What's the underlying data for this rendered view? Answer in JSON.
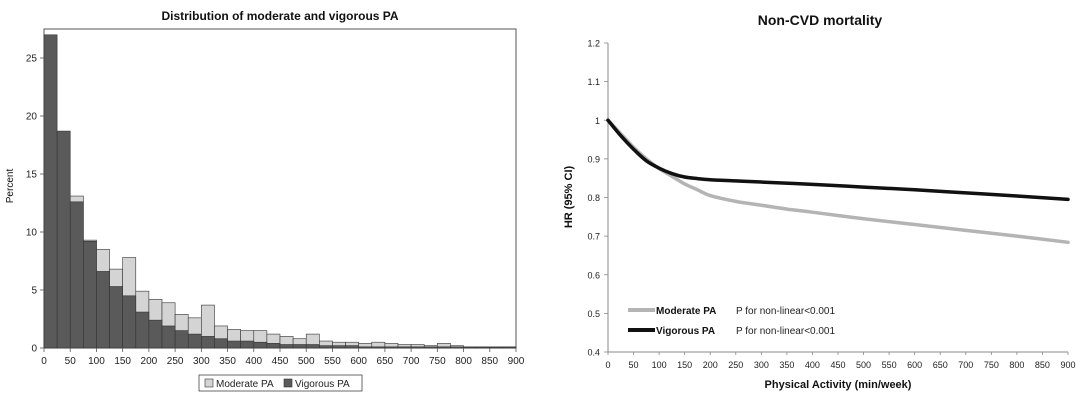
{
  "chart_data": [
    {
      "type": "bar",
      "title": "Distribution of moderate and vigorous PA",
      "xlabel": "",
      "ylabel": "Percent",
      "xlim": [
        0,
        900
      ],
      "ylim": [
        0,
        27.5
      ],
      "bin_width": 25,
      "x_ticks": [
        0,
        50,
        100,
        150,
        200,
        250,
        300,
        350,
        400,
        450,
        500,
        550,
        600,
        650,
        700,
        750,
        800,
        850,
        900
      ],
      "y_ticks": [
        0,
        5,
        10,
        15,
        20,
        25
      ],
      "grid": false,
      "legend_position": "bottom",
      "series": [
        {
          "name": "Moderate PA",
          "color": "#d4d4d4",
          "values": [
            9.2,
            9.5,
            13.1,
            9.3,
            8.5,
            6.8,
            7.8,
            4.9,
            4.2,
            3.9,
            2.9,
            2.6,
            3.7,
            1.9,
            1.6,
            1.5,
            1.5,
            1.2,
            1.0,
            0.8,
            1.2,
            0.6,
            0.5,
            0.5,
            0.4,
            0.5,
            0.4,
            0.3,
            0.3,
            0.2,
            0.4,
            0.2,
            0.1,
            0.1,
            0.1,
            0.1
          ]
        },
        {
          "name": "Vigorous PA",
          "color": "#5a5a5a",
          "values": [
            27.0,
            18.7,
            12.6,
            9.2,
            6.6,
            5.3,
            4.5,
            3.1,
            2.4,
            1.9,
            1.5,
            1.2,
            1.0,
            0.8,
            0.6,
            0.6,
            0.5,
            0.4,
            0.3,
            0.3,
            0.3,
            0.2,
            0.2,
            0.2,
            0.1,
            0.1,
            0.1,
            0.1,
            0.1,
            0.1,
            0.1,
            0.1,
            0.05,
            0.05,
            0.05,
            0.05
          ]
        }
      ]
    },
    {
      "type": "line",
      "title": "Non-CVD mortality",
      "xlabel": "Physical Activity (min/week)",
      "ylabel": "HR (95% CI)",
      "xlim": [
        0,
        900
      ],
      "ylim": [
        0.4,
        1.2
      ],
      "x_ticks": [
        0,
        50,
        100,
        150,
        200,
        250,
        300,
        350,
        400,
        450,
        500,
        550,
        600,
        650,
        700,
        750,
        800,
        850,
        900
      ],
      "y_ticks": [
        0.4,
        0.5,
        0.6,
        0.7,
        0.8,
        0.9,
        1,
        1.1,
        1.2
      ],
      "grid": false,
      "legend_position": "bottom-left",
      "series": [
        {
          "name": "Moderate PA",
          "annotation": "P for non-linear<0.001",
          "color": "#b4b4b4",
          "x": [
            0,
            25,
            50,
            75,
            100,
            125,
            150,
            175,
            200,
            250,
            300,
            350,
            400,
            500,
            600,
            700,
            800,
            900
          ],
          "y": [
            1.0,
            0.965,
            0.93,
            0.9,
            0.875,
            0.855,
            0.835,
            0.82,
            0.805,
            0.79,
            0.78,
            0.77,
            0.762,
            0.745,
            0.73,
            0.715,
            0.7,
            0.684
          ]
        },
        {
          "name": "Vigorous PA",
          "annotation": "P for non-linear<0.001",
          "color": "#111111",
          "x": [
            0,
            25,
            50,
            75,
            100,
            125,
            150,
            175,
            200,
            250,
            300,
            400,
            500,
            600,
            700,
            800,
            900
          ],
          "y": [
            1.0,
            0.96,
            0.925,
            0.895,
            0.876,
            0.862,
            0.853,
            0.849,
            0.846,
            0.843,
            0.84,
            0.834,
            0.827,
            0.82,
            0.812,
            0.804,
            0.795
          ]
        }
      ]
    }
  ]
}
